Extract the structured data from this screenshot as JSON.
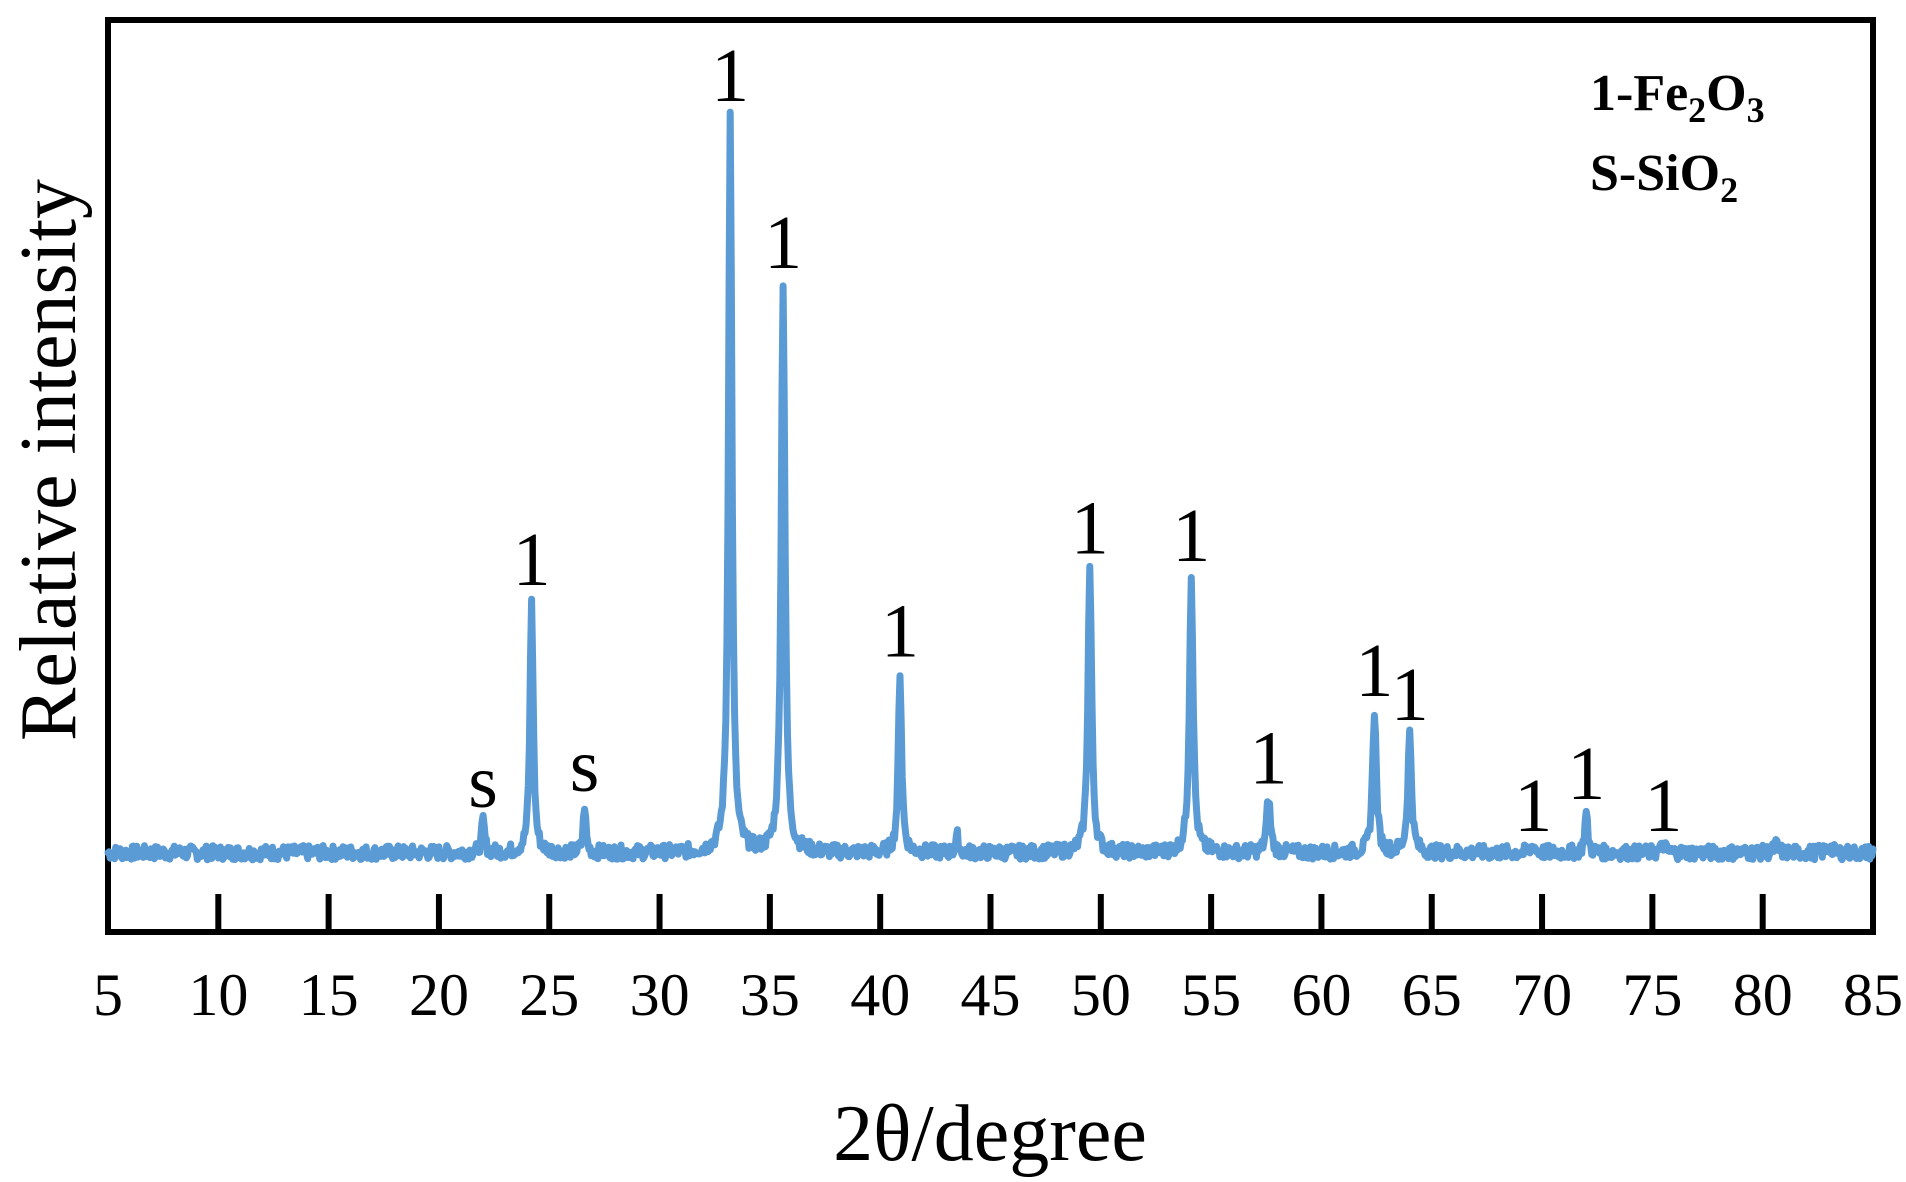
{
  "chart_data": {
    "type": "line",
    "title": "",
    "xlabel": "2θ/degree",
    "ylabel": "Relative intensity",
    "xlim": [
      5,
      85
    ],
    "ylim": [
      0,
      1.15
    ],
    "x_ticks": [
      5,
      10,
      15,
      20,
      25,
      30,
      35,
      40,
      45,
      50,
      55,
      60,
      65,
      70,
      75,
      80,
      85
    ],
    "grid": false,
    "line_color": "#5b9bd5",
    "baseline": 0.1,
    "peaks": [
      {
        "x": 22.0,
        "y": 0.14,
        "width": 0.12
      },
      {
        "x": 24.2,
        "y": 0.42,
        "width": 0.13
      },
      {
        "x": 26.6,
        "y": 0.16,
        "width": 0.1
      },
      {
        "x": 33.2,
        "y": 1.03,
        "width": 0.14
      },
      {
        "x": 35.6,
        "y": 0.82,
        "width": 0.15
      },
      {
        "x": 40.9,
        "y": 0.33,
        "width": 0.13
      },
      {
        "x": 43.5,
        "y": 0.12,
        "width": 0.1
      },
      {
        "x": 49.5,
        "y": 0.46,
        "width": 0.15
      },
      {
        "x": 54.1,
        "y": 0.45,
        "width": 0.15
      },
      {
        "x": 57.6,
        "y": 0.17,
        "width": 0.15
      },
      {
        "x": 62.4,
        "y": 0.28,
        "width": 0.15
      },
      {
        "x": 64.0,
        "y": 0.25,
        "width": 0.15
      },
      {
        "x": 69.6,
        "y": 0.11,
        "width": 0.15
      },
      {
        "x": 72.0,
        "y": 0.15,
        "width": 0.12
      },
      {
        "x": 75.5,
        "y": 0.11,
        "width": 0.15
      },
      {
        "x": 80.6,
        "y": 0.11,
        "width": 0.15
      },
      {
        "x": 83.0,
        "y": 0.11,
        "width": 0.15
      }
    ],
    "annotations": [
      {
        "x": 22.0,
        "y": 0.15,
        "label": "s"
      },
      {
        "x": 24.2,
        "y": 0.43,
        "label": "1"
      },
      {
        "x": 26.6,
        "y": 0.17,
        "label": "s"
      },
      {
        "x": 33.2,
        "y": 1.04,
        "label": "1"
      },
      {
        "x": 35.6,
        "y": 0.83,
        "label": "1"
      },
      {
        "x": 40.9,
        "y": 0.34,
        "label": "1"
      },
      {
        "x": 49.5,
        "y": 0.47,
        "label": "1"
      },
      {
        "x": 54.1,
        "y": 0.46,
        "label": "1"
      },
      {
        "x": 57.6,
        "y": 0.18,
        "label": "1"
      },
      {
        "x": 62.4,
        "y": 0.29,
        "label": "1"
      },
      {
        "x": 64.0,
        "y": 0.26,
        "label": "1"
      },
      {
        "x": 69.6,
        "y": 0.12,
        "label": "1"
      },
      {
        "x": 72.0,
        "y": 0.16,
        "label": "1"
      },
      {
        "x": 75.5,
        "y": 0.12,
        "label": "1"
      }
    ],
    "legend": [
      {
        "prefix": "1-Fe",
        "sub1": "2",
        "mid": "O",
        "sub2": "3"
      },
      {
        "prefix": "S-SiO",
        "sub1": "2",
        "mid": "",
        "sub2": ""
      }
    ],
    "legend_position": "top-right"
  }
}
